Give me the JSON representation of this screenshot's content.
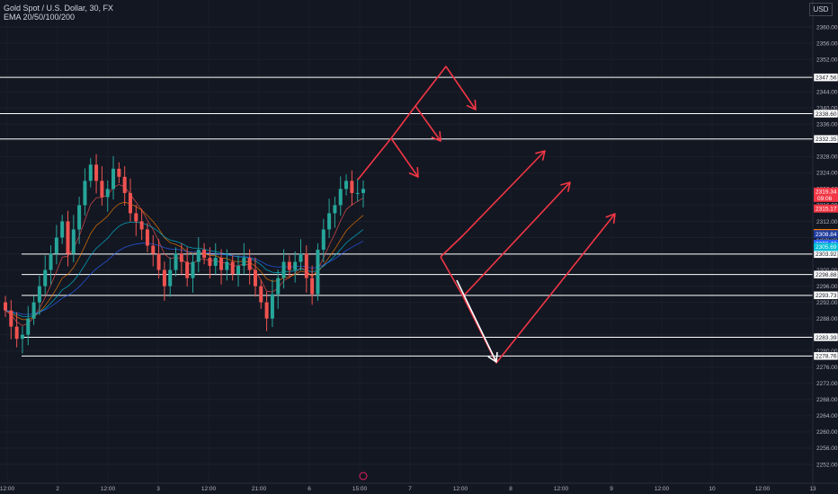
{
  "header": {
    "title": "Gold Spot / U.S. Dollar, 30, FX",
    "indicator": "EMA 20/50/100/200"
  },
  "currency": "USD",
  "colors": {
    "bg": "#131722",
    "up": "#26a69a",
    "down": "#ef5350",
    "level": "#ffffff",
    "arrow": "#f23645"
  },
  "chart_data": {
    "type": "line",
    "ylim": [
      2250,
      2364
    ],
    "y_ticks": [
      2252,
      2256,
      2260,
      2264,
      2268,
      2272,
      2276,
      2280,
      2284,
      2288,
      2292,
      2296,
      2300,
      2304,
      2308,
      2312,
      2316,
      2320,
      2324,
      2328,
      2332,
      2336,
      2340,
      2344,
      2348,
      2352,
      2356,
      2360
    ],
    "x_ticks": [
      "12:00",
      "2",
      "12:00",
      "3",
      "12:00",
      "21:00",
      "6",
      "15:00",
      "7",
      "12:00",
      "8",
      "12:00",
      "9",
      "12:00",
      "10",
      "12:00",
      "13"
    ],
    "levels": [
      2347.56,
      2338.6,
      2332.35,
      2303.92,
      2298.88,
      2293.73,
      2283.39,
      2278.76
    ],
    "price_tags": [
      {
        "label": "2319.34",
        "sub": "09:06",
        "value": 2319.34,
        "color": "#f23645"
      },
      {
        "label": "2315.17",
        "value": 2315.17,
        "color": "#f23645"
      },
      {
        "label": "2309.11",
        "value": 2309.11,
        "color": "#f57c00"
      },
      {
        "label": "2308.84",
        "value": 2308.84,
        "color": "#1e3a9e"
      },
      {
        "label": "2306.48",
        "value": 2306.48,
        "color": "#2962ff"
      },
      {
        "label": "2305.69",
        "value": 2305.69,
        "color": "#00bcd4"
      }
    ],
    "price_series": [
      2290,
      2286,
      2283,
      2284,
      2288,
      2292,
      2296,
      2300,
      2304,
      2308,
      2312,
      2304,
      2310,
      2316,
      2322,
      2326,
      2322,
      2318,
      2320,
      2325,
      2323,
      2319,
      2314,
      2312,
      2310,
      2306,
      2304,
      2300,
      2296,
      2300,
      2304,
      2302,
      2298,
      2302,
      2305,
      2303,
      2301,
      2303,
      2300,
      2302,
      2299,
      2301,
      2303,
      2300,
      2296,
      2292,
      2288,
      2294,
      2298,
      2302,
      2300,
      2302,
      2304,
      2298,
      2294,
      2305,
      2310,
      2314,
      2316,
      2320,
      2322,
      2319,
      2319,
      2320
    ]
  }
}
